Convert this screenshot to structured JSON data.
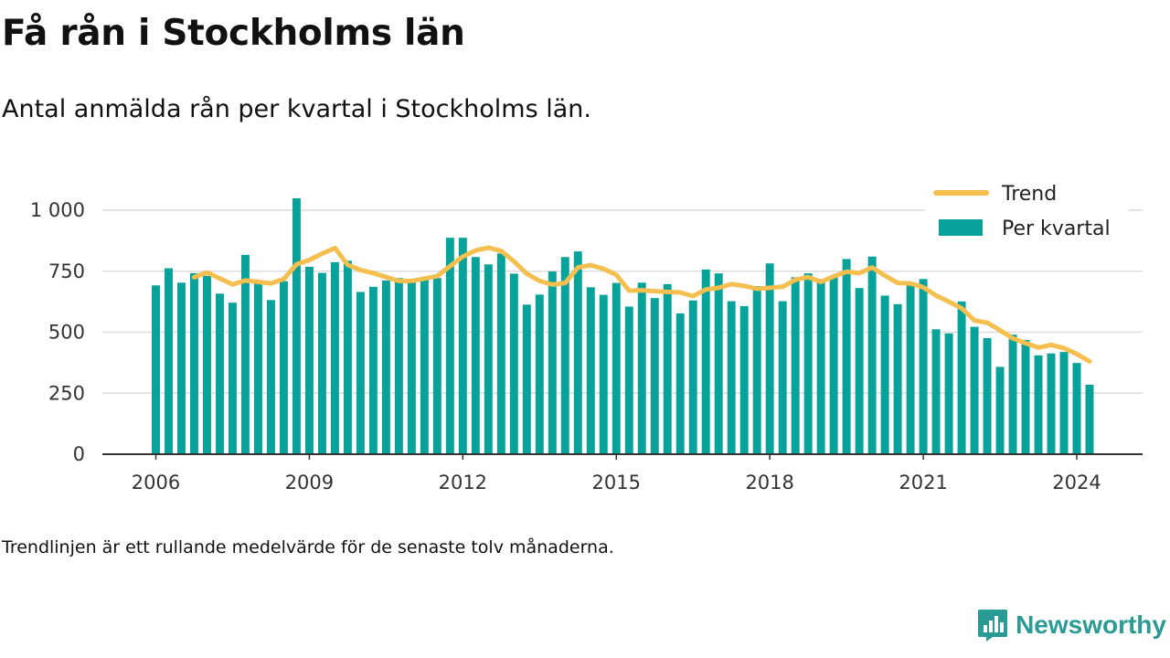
{
  "header": {
    "title": "Få rån i Stockholms län",
    "subtitle": "Antal anmälda rån per kvartal i Stockholms län."
  },
  "footnote": "Trendlinjen är ett rullande medelvärde för de senaste tolv månaderna.",
  "brand": {
    "name": "Newsworthy",
    "icon": "newsworthy-logo-icon"
  },
  "colors": {
    "bars": "#07a39a",
    "trend": "#f5bf4f",
    "grid": "#dcdcdc",
    "axis": "#333333",
    "brand": "#2a9b94"
  },
  "chart_data": {
    "type": "bar",
    "x_unit": "quarter",
    "start_quarter": "2006 Q1",
    "x_ticks": [
      "2006",
      "2009",
      "2012",
      "2015",
      "2018",
      "2021",
      "2024"
    ],
    "y_ticks": [
      "0",
      "250",
      "500",
      "750",
      "1 000"
    ],
    "ylim": [
      0,
      1050
    ],
    "grid": true,
    "legend_position": "top-right",
    "series": [
      {
        "name": "Per kvartal",
        "kind": "bar",
        "values": [
          692,
          762,
          703,
          742,
          731,
          658,
          621,
          817,
          703,
          632,
          709,
          1049,
          768,
          743,
          787,
          793,
          665,
          686,
          712,
          722,
          718,
          716,
          722,
          887,
          887,
          808,
          778,
          823,
          740,
          613,
          654,
          749,
          808,
          831,
          684,
          653,
          702,
          605,
          703,
          640,
          697,
          577,
          630,
          757,
          741,
          627,
          607,
          689,
          782,
          627,
          725,
          741,
          713,
          727,
          800,
          681,
          810,
          650,
          615,
          700,
          718,
          512,
          495,
          626,
          522,
          476,
          358,
          490,
          468,
          405,
          413,
          419,
          374,
          285
        ]
      },
      {
        "name": "Trend",
        "kind": "line",
        "values": [
          null,
          null,
          null,
          725,
          745,
          720,
          696,
          712,
          706,
          700,
          718,
          778,
          796,
          822,
          845,
          776,
          755,
          742,
          726,
          710,
          710,
          720,
          730,
          770,
          810,
          835,
          846,
          833,
          790,
          740,
          710,
          695,
          702,
          765,
          775,
          760,
          735,
          670,
          672,
          668,
          665,
          663,
          648,
          675,
          682,
          697,
          690,
          678,
          682,
          686,
          715,
          726,
          706,
          729,
          748,
          742,
          765,
          732,
          702,
          700,
          684,
          650,
          625,
          598,
          548,
          539,
          508,
          475,
          455,
          437,
          448,
          435,
          411,
          380
        ]
      }
    ]
  }
}
